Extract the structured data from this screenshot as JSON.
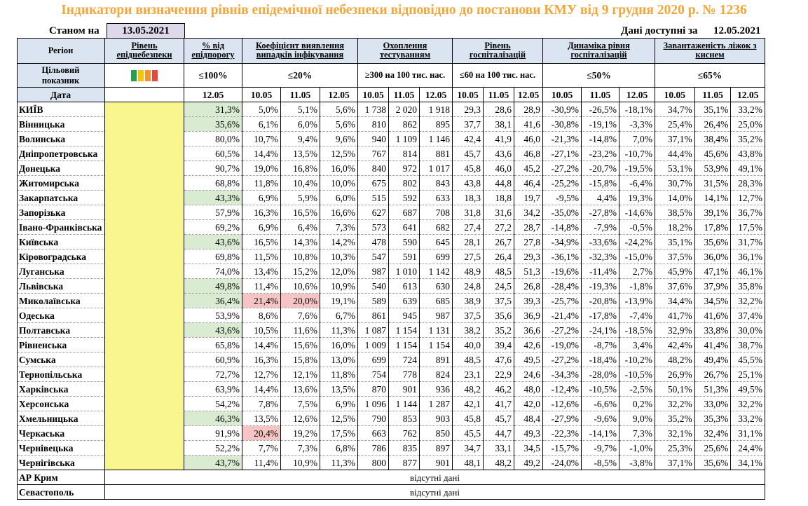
{
  "title": "Індикатори визначення рівнів епідемічної небезпеки відповідно до постанови КМУ від 9 грудня 2020 р. № 1236",
  "as_of_label": "Станом на",
  "as_of_date": "13.05.2021",
  "available_label": "Дані доступні за",
  "available_date": "12.05.2021",
  "header": {
    "region": "Регіон",
    "level": "Рівень епіднебезпеки",
    "pct_threshold": "% від епідпорогу",
    "detection": "Коефіцієнт виявлення випадків інфікування",
    "testing": "Охоплення тестуванням",
    "hospital": "Рівень госпіталізацій",
    "dynamics": "Динаміка рівня госпіталізацій",
    "oxygen": "Завантаженість ліжок з киснем"
  },
  "target": {
    "label": "Цільовий показник",
    "pct_threshold": "≤100%",
    "detection": "≤20%",
    "testing": "≥300 на 100 тис. нас.",
    "hospital": "≤60 на 100 тис. нас.",
    "dynamics": "≤50%",
    "oxygen": "≤65%"
  },
  "level_colors": [
    "#22a04b",
    "#f7c500",
    "#f5912f",
    "#e8473f"
  ],
  "date_label": "Дата",
  "pct_date": "12.05",
  "dates3": [
    "10.05",
    "11.05",
    "12.05"
  ],
  "regions": [
    {
      "name": "КИЇВ",
      "pct": "31,3%",
      "pc": "green",
      "det": [
        "5,0%",
        "5,1%",
        "5,6%"
      ],
      "dc": [
        "",
        "",
        ""
      ],
      "test": [
        "1 738",
        "2 020",
        "1 918"
      ],
      "hosp": [
        "29,3",
        "28,6",
        "28,9"
      ],
      "dyn": [
        "-30,9%",
        "-26,5%",
        "-18,1%"
      ],
      "oxy": [
        "34,7%",
        "35,1%",
        "33,2%"
      ]
    },
    {
      "name": "Вінницька",
      "pct": "35,6%",
      "pc": "green",
      "det": [
        "6,1%",
        "6,0%",
        "5,6%"
      ],
      "dc": [
        "",
        "",
        ""
      ],
      "test": [
        "810",
        "862",
        "895"
      ],
      "hosp": [
        "37,7",
        "38,1",
        "41,6"
      ],
      "dyn": [
        "-30,8%",
        "-19,1%",
        "-3,3%"
      ],
      "oxy": [
        "25,4%",
        "26,4%",
        "25,0%"
      ]
    },
    {
      "name": "Волинська",
      "pct": "80,0%",
      "pc": "",
      "det": [
        "10,7%",
        "9,4%",
        "9,6%"
      ],
      "dc": [
        "",
        "",
        ""
      ],
      "test": [
        "940",
        "1 109",
        "1 146"
      ],
      "hosp": [
        "42,4",
        "41,9",
        "46,0"
      ],
      "dyn": [
        "-21,3%",
        "-14,8%",
        "7,0%"
      ],
      "oxy": [
        "37,1%",
        "38,4%",
        "35,2%"
      ]
    },
    {
      "name": "Дніпропетровська",
      "pct": "60,5%",
      "pc": "",
      "det": [
        "14,4%",
        "13,5%",
        "12,5%"
      ],
      "dc": [
        "",
        "",
        ""
      ],
      "test": [
        "767",
        "814",
        "881"
      ],
      "hosp": [
        "45,7",
        "43,6",
        "46,8"
      ],
      "dyn": [
        "-27,1%",
        "-23,2%",
        "-10,7%"
      ],
      "oxy": [
        "44,4%",
        "45,6%",
        "43,8%"
      ]
    },
    {
      "name": "Донецька",
      "pct": "90,7%",
      "pc": "",
      "det": [
        "19,0%",
        "16,8%",
        "16,0%"
      ],
      "dc": [
        "",
        "",
        ""
      ],
      "test": [
        "840",
        "972",
        "1 017"
      ],
      "hosp": [
        "45,8",
        "46,0",
        "45,2"
      ],
      "dyn": [
        "-27,2%",
        "-20,7%",
        "-19,5%"
      ],
      "oxy": [
        "53,1%",
        "53,9%",
        "49,1%"
      ]
    },
    {
      "name": "Житомирська",
      "pct": "68,8%",
      "pc": "",
      "det": [
        "11,8%",
        "10,4%",
        "10,0%"
      ],
      "dc": [
        "",
        "",
        ""
      ],
      "test": [
        "675",
        "802",
        "843"
      ],
      "hosp": [
        "43,8",
        "44,8",
        "46,4"
      ],
      "dyn": [
        "-25,2%",
        "-15,8%",
        "-6,4%"
      ],
      "oxy": [
        "30,7%",
        "31,5%",
        "28,3%"
      ]
    },
    {
      "name": "Закарпатська",
      "pct": "43,3%",
      "pc": "green",
      "det": [
        "6,9%",
        "5,9%",
        "6,0%"
      ],
      "dc": [
        "",
        "",
        ""
      ],
      "test": [
        "515",
        "592",
        "633"
      ],
      "hosp": [
        "18,3",
        "18,8",
        "19,7"
      ],
      "dyn": [
        "-9,5%",
        "4,4%",
        "19,3%"
      ],
      "oxy": [
        "14,0%",
        "14,1%",
        "12,7%"
      ]
    },
    {
      "name": "Запорізька",
      "pct": "57,9%",
      "pc": "",
      "det": [
        "16,3%",
        "16,5%",
        "16,6%"
      ],
      "dc": [
        "",
        "",
        ""
      ],
      "test": [
        "627",
        "687",
        "708"
      ],
      "hosp": [
        "31,8",
        "31,6",
        "34,2"
      ],
      "dyn": [
        "-35,0%",
        "-27,8%",
        "-14,6%"
      ],
      "oxy": [
        "38,5%",
        "39,1%",
        "36,7%"
      ]
    },
    {
      "name": "Івано-Франківська",
      "pct": "69,2%",
      "pc": "",
      "det": [
        "6,9%",
        "6,4%",
        "7,3%"
      ],
      "dc": [
        "",
        "",
        ""
      ],
      "test": [
        "573",
        "641",
        "682"
      ],
      "hosp": [
        "27,4",
        "27,2",
        "28,7"
      ],
      "dyn": [
        "-14,8%",
        "-7,9%",
        "-0,5%"
      ],
      "oxy": [
        "18,2%",
        "17,8%",
        "17,5%"
      ]
    },
    {
      "name": "Київська",
      "pct": "43,6%",
      "pc": "green",
      "det": [
        "16,5%",
        "14,3%",
        "14,2%"
      ],
      "dc": [
        "",
        "",
        ""
      ],
      "test": [
        "478",
        "590",
        "645"
      ],
      "hosp": [
        "28,1",
        "26,7",
        "27,8"
      ],
      "dyn": [
        "-34,9%",
        "-33,6%",
        "-24,2%"
      ],
      "oxy": [
        "35,1%",
        "35,6%",
        "31,7%"
      ]
    },
    {
      "name": "Кіровоградська",
      "pct": "69,8%",
      "pc": "",
      "det": [
        "11,5%",
        "10,8%",
        "10,3%"
      ],
      "dc": [
        "",
        "",
        ""
      ],
      "test": [
        "547",
        "591",
        "699"
      ],
      "hosp": [
        "27,5",
        "26,4",
        "29,3"
      ],
      "dyn": [
        "-36,1%",
        "-32,3%",
        "-15,0%"
      ],
      "oxy": [
        "37,5%",
        "36,0%",
        "36,1%"
      ]
    },
    {
      "name": "Луганська",
      "pct": "74,0%",
      "pc": "",
      "det": [
        "13,4%",
        "15,2%",
        "12,0%"
      ],
      "dc": [
        "",
        "",
        ""
      ],
      "test": [
        "987",
        "1 010",
        "1 142"
      ],
      "hosp": [
        "48,9",
        "48,5",
        "51,3"
      ],
      "dyn": [
        "-19,6%",
        "-11,4%",
        "2,7%"
      ],
      "oxy": [
        "45,9%",
        "47,1%",
        "46,1%"
      ]
    },
    {
      "name": "Львівська",
      "pct": "49,8%",
      "pc": "green",
      "det": [
        "11,4%",
        "10,6%",
        "10,9%"
      ],
      "dc": [
        "",
        "",
        ""
      ],
      "test": [
        "540",
        "613",
        "630"
      ],
      "hosp": [
        "24,8",
        "24,5",
        "26,8"
      ],
      "dyn": [
        "-28,4%",
        "-19,3%",
        "-1,8%"
      ],
      "oxy": [
        "37,6%",
        "37,9%",
        "35,8%"
      ]
    },
    {
      "name": "Миколаївська",
      "pct": "36,4%",
      "pc": "green",
      "det": [
        "21,4%",
        "20,0%",
        "19,1%"
      ],
      "dc": [
        "red",
        "red",
        ""
      ],
      "test": [
        "589",
        "639",
        "685"
      ],
      "hosp": [
        "38,9",
        "37,5",
        "39,3"
      ],
      "dyn": [
        "-25,7%",
        "-20,8%",
        "-13,9%"
      ],
      "oxy": [
        "34,4%",
        "34,5%",
        "32,2%"
      ]
    },
    {
      "name": "Одеська",
      "pct": "53,9%",
      "pc": "",
      "det": [
        "8,6%",
        "7,6%",
        "6,7%"
      ],
      "dc": [
        "",
        "",
        ""
      ],
      "test": [
        "861",
        "945",
        "987"
      ],
      "hosp": [
        "37,5",
        "35,6",
        "36,9"
      ],
      "dyn": [
        "-21,4%",
        "-17,8%",
        "-7,4%"
      ],
      "oxy": [
        "41,7%",
        "41,6%",
        "37,4%"
      ]
    },
    {
      "name": "Полтавська",
      "pct": "43,6%",
      "pc": "green",
      "det": [
        "10,5%",
        "11,6%",
        "11,3%"
      ],
      "dc": [
        "",
        "",
        ""
      ],
      "test": [
        "1 087",
        "1 154",
        "1 131"
      ],
      "hosp": [
        "38,2",
        "35,2",
        "36,6"
      ],
      "dyn": [
        "-27,2%",
        "-24,1%",
        "-18,5%"
      ],
      "oxy": [
        "32,9%",
        "33,8%",
        "30,0%"
      ]
    },
    {
      "name": "Рівненська",
      "pct": "65,8%",
      "pc": "",
      "det": [
        "14,4%",
        "15,6%",
        "16,0%"
      ],
      "dc": [
        "",
        "",
        ""
      ],
      "test": [
        "1 009",
        "1 154",
        "1 154"
      ],
      "hosp": [
        "40,0",
        "39,4",
        "42,6"
      ],
      "dyn": [
        "-19,0%",
        "-8,7%",
        "3,4%"
      ],
      "oxy": [
        "42,4%",
        "41,4%",
        "38,7%"
      ]
    },
    {
      "name": "Сумська",
      "pct": "60,9%",
      "pc": "",
      "det": [
        "16,3%",
        "15,8%",
        "13,0%"
      ],
      "dc": [
        "",
        "",
        ""
      ],
      "test": [
        "699",
        "724",
        "891"
      ],
      "hosp": [
        "48,5",
        "47,6",
        "49,5"
      ],
      "dyn": [
        "-27,2%",
        "-18,4%",
        "-10,2%"
      ],
      "oxy": [
        "48,2%",
        "49,4%",
        "45,5%"
      ]
    },
    {
      "name": "Тернопільська",
      "pct": "72,7%",
      "pc": "",
      "det": [
        "12,7%",
        "12,1%",
        "11,8%"
      ],
      "dc": [
        "",
        "",
        ""
      ],
      "test": [
        "754",
        "778",
        "824"
      ],
      "hosp": [
        "23,1",
        "22,9",
        "24,6"
      ],
      "dyn": [
        "-34,3%",
        "-28,0%",
        "-10,5%"
      ],
      "oxy": [
        "26,9%",
        "26,7%",
        "25,1%"
      ]
    },
    {
      "name": "Харківська",
      "pct": "63,9%",
      "pc": "",
      "det": [
        "14,4%",
        "13,6%",
        "13,5%"
      ],
      "dc": [
        "",
        "",
        ""
      ],
      "test": [
        "870",
        "901",
        "936"
      ],
      "hosp": [
        "48,2",
        "46,2",
        "48,0"
      ],
      "dyn": [
        "-12,4%",
        "-10,5%",
        "-2,5%"
      ],
      "oxy": [
        "50,1%",
        "51,3%",
        "49,5%"
      ]
    },
    {
      "name": "Херсонська",
      "pct": "54,2%",
      "pc": "",
      "det": [
        "7,8%",
        "7,5%",
        "6,9%"
      ],
      "dc": [
        "",
        "",
        ""
      ],
      "test": [
        "1 096",
        "1 144",
        "1 287"
      ],
      "hosp": [
        "42,1",
        "41,7",
        "42,0"
      ],
      "dyn": [
        "-12,6%",
        "-6,6%",
        "0,2%"
      ],
      "oxy": [
        "32,2%",
        "33,0%",
        "32,2%"
      ]
    },
    {
      "name": "Хмельницька",
      "pct": "46,3%",
      "pc": "green",
      "det": [
        "13,5%",
        "12,6%",
        "12,5%"
      ],
      "dc": [
        "",
        "",
        ""
      ],
      "test": [
        "790",
        "853",
        "903"
      ],
      "hosp": [
        "45,8",
        "45,7",
        "48,4"
      ],
      "dyn": [
        "-27,9%",
        "-9,6%",
        "9,0%"
      ],
      "oxy": [
        "35,2%",
        "35,3%",
        "33,2%"
      ]
    },
    {
      "name": "Черкаська",
      "pct": "91,9%",
      "pc": "",
      "det": [
        "20,4%",
        "19,2%",
        "17,5%"
      ],
      "dc": [
        "red",
        "",
        ""
      ],
      "test": [
        "663",
        "762",
        "850"
      ],
      "hosp": [
        "45,5",
        "44,7",
        "49,3"
      ],
      "dyn": [
        "-22,3%",
        "-14,1%",
        "7,3%"
      ],
      "oxy": [
        "32,1%",
        "32,4%",
        "31,1%"
      ]
    },
    {
      "name": "Чернівецька",
      "pct": "52,2%",
      "pc": "",
      "det": [
        "7,7%",
        "7,3%",
        "6,8%"
      ],
      "dc": [
        "",
        "",
        ""
      ],
      "test": [
        "786",
        "835",
        "897"
      ],
      "hosp": [
        "34,7",
        "33,1",
        "34,5"
      ],
      "dyn": [
        "-15,7%",
        "-9,7%",
        "-1,0%"
      ],
      "oxy": [
        "25,3%",
        "25,6%",
        "24,4%"
      ]
    },
    {
      "name": "Чернігівська",
      "pct": "43,7%",
      "pc": "green",
      "det": [
        "11,4%",
        "10,9%",
        "11,3%"
      ],
      "dc": [
        "",
        "",
        ""
      ],
      "test": [
        "800",
        "877",
        "901"
      ],
      "hosp": [
        "48,1",
        "48,2",
        "49,2"
      ],
      "dyn": [
        "-24,0%",
        "-8,5%",
        "-3,8%"
      ],
      "oxy": [
        "37,1%",
        "35,6%",
        "34,1%"
      ]
    }
  ],
  "no_data_rows": [
    {
      "name": "АР Крим",
      "text": "відсутні дані"
    },
    {
      "name": "Севастополь",
      "text": "відсутні дані"
    }
  ]
}
